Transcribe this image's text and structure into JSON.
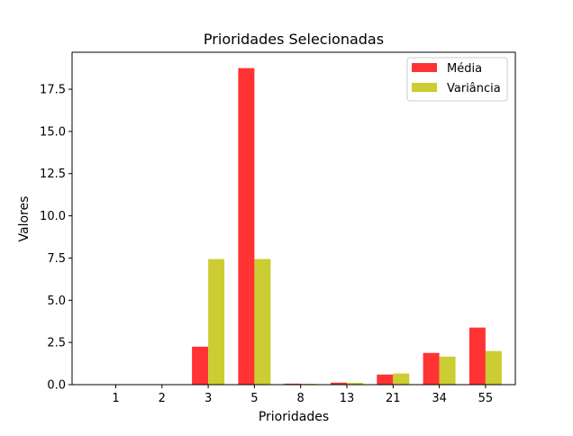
{
  "chart_data": {
    "type": "bar",
    "title": "Prioridades Selecionadas",
    "xlabel": "Prioridades",
    "ylabel": "Valores",
    "categories": [
      "1",
      "2",
      "3",
      "5",
      "8",
      "13",
      "21",
      "34",
      "55"
    ],
    "series": [
      {
        "name": "Média",
        "color": "#ff3333",
        "values": [
          0,
          0,
          2.25,
          18.75,
          0.06,
          0.12,
          0.6,
          1.88,
          3.38
        ]
      },
      {
        "name": "Variância",
        "color": "#cccc33",
        "values": [
          0,
          0,
          7.44,
          7.44,
          0.05,
          0.11,
          0.66,
          1.66,
          1.99
        ]
      }
    ],
    "ylim": [
      0,
      19.69
    ],
    "yticks": [
      "0.0",
      "2.5",
      "5.0",
      "7.5",
      "10.0",
      "12.5",
      "15.0",
      "17.5"
    ],
    "legend_position": "top-right",
    "grid": false
  }
}
